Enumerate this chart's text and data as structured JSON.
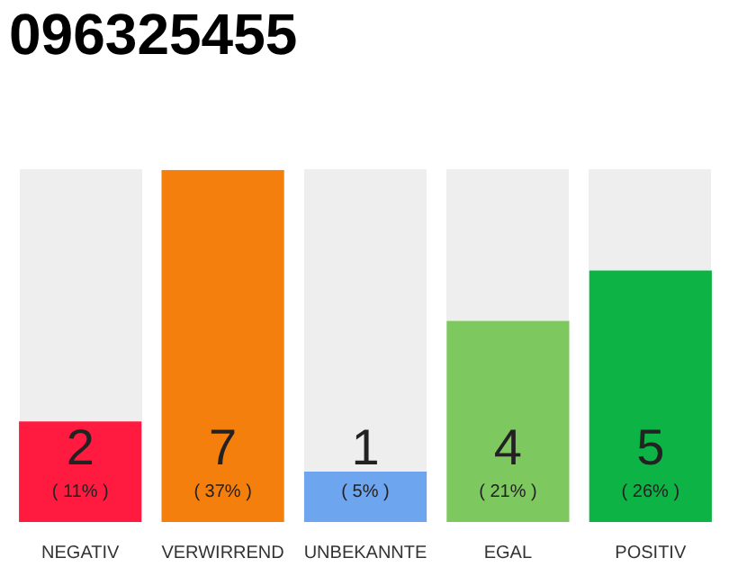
{
  "chart_data": {
    "type": "bar",
    "title": "096325455",
    "categories": [
      "NEGATIV",
      "VERWIRREND",
      "UNBEKANNTE",
      "EGAL",
      "POSITIV"
    ],
    "values": [
      2,
      7,
      1,
      4,
      5
    ],
    "colors": [
      "#ff1a40",
      "#f47f0d",
      "#6ea5ef",
      "#7ec95f",
      "#0db345"
    ],
    "value_labels": [
      "2\n( 11% )",
      "7\n( 37% )",
      "1\n( 5% )",
      "4\n( 21% )",
      "5\n( 26% )"
    ],
    "tick_labels": "x",
    "grid": false,
    "legend": false
  }
}
